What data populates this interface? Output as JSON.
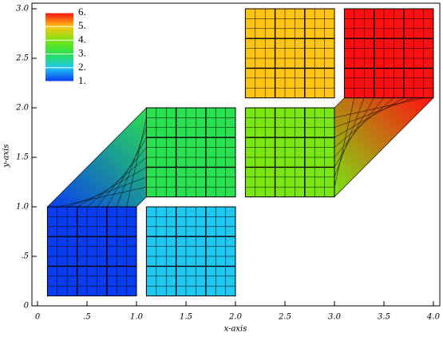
{
  "chart_data": {
    "type": "mesh",
    "x_label": "x-axis",
    "y_label": "y-axis",
    "xlim": [
      0,
      4.0
    ],
    "ylim": [
      0,
      3.0
    ],
    "xticks": [
      0,
      {
        "value": 0.5,
        "label": ".5"
      },
      {
        "value": 1.0,
        "label": "1.0"
      },
      1.5,
      {
        "value": 2.0,
        "label": "2.0"
      },
      2.5,
      {
        "value": 3.0,
        "label": "3.0"
      },
      3.5,
      {
        "value": 4.0,
        "label": "4.0"
      }
    ],
    "yticks": [
      0,
      {
        "value": 0.5,
        "label": ".5"
      },
      {
        "value": 1.0,
        "label": "1.0"
      },
      1.5,
      {
        "value": 2.0,
        "label": "2.0"
      },
      2.5,
      {
        "value": 3.0,
        "label": "3.0"
      }
    ],
    "blocks": [
      {
        "x": [
          0.1,
          1.0
        ],
        "y": [
          0.1,
          1.0
        ],
        "value": 1,
        "color": "#0a3cf0"
      },
      {
        "x": [
          1.1,
          2.0
        ],
        "y": [
          0.1,
          1.0
        ],
        "value": 2,
        "color": "#1ec8f0"
      },
      {
        "x": [
          1.1,
          2.0
        ],
        "y": [
          1.1,
          2.0
        ],
        "value": 3,
        "color": "#28e050"
      },
      {
        "x": [
          2.1,
          3.0
        ],
        "y": [
          1.1,
          2.0
        ],
        "value": 4,
        "color": "#7ae614"
      },
      {
        "x": [
          2.1,
          3.0
        ],
        "y": [
          2.1,
          3.0
        ],
        "value": 5,
        "color": "#ffc414"
      },
      {
        "x": [
          3.1,
          4.0
        ],
        "y": [
          2.1,
          3.0
        ],
        "value": 6,
        "color": "#ff1010"
      }
    ],
    "colorbar": {
      "ticks": [
        {
          "value": 1,
          "label": "1."
        },
        {
          "value": 2,
          "label": "2."
        },
        {
          "value": 3,
          "label": "3."
        },
        {
          "value": 4,
          "label": "4."
        },
        {
          "value": 5,
          "label": "5."
        },
        {
          "value": 6,
          "label": "6."
        }
      ],
      "colors": [
        "#0a3cf0",
        "#1ec8f0",
        "#28e050",
        "#7ae614",
        "#ffc414",
        "#ff1010"
      ]
    }
  }
}
